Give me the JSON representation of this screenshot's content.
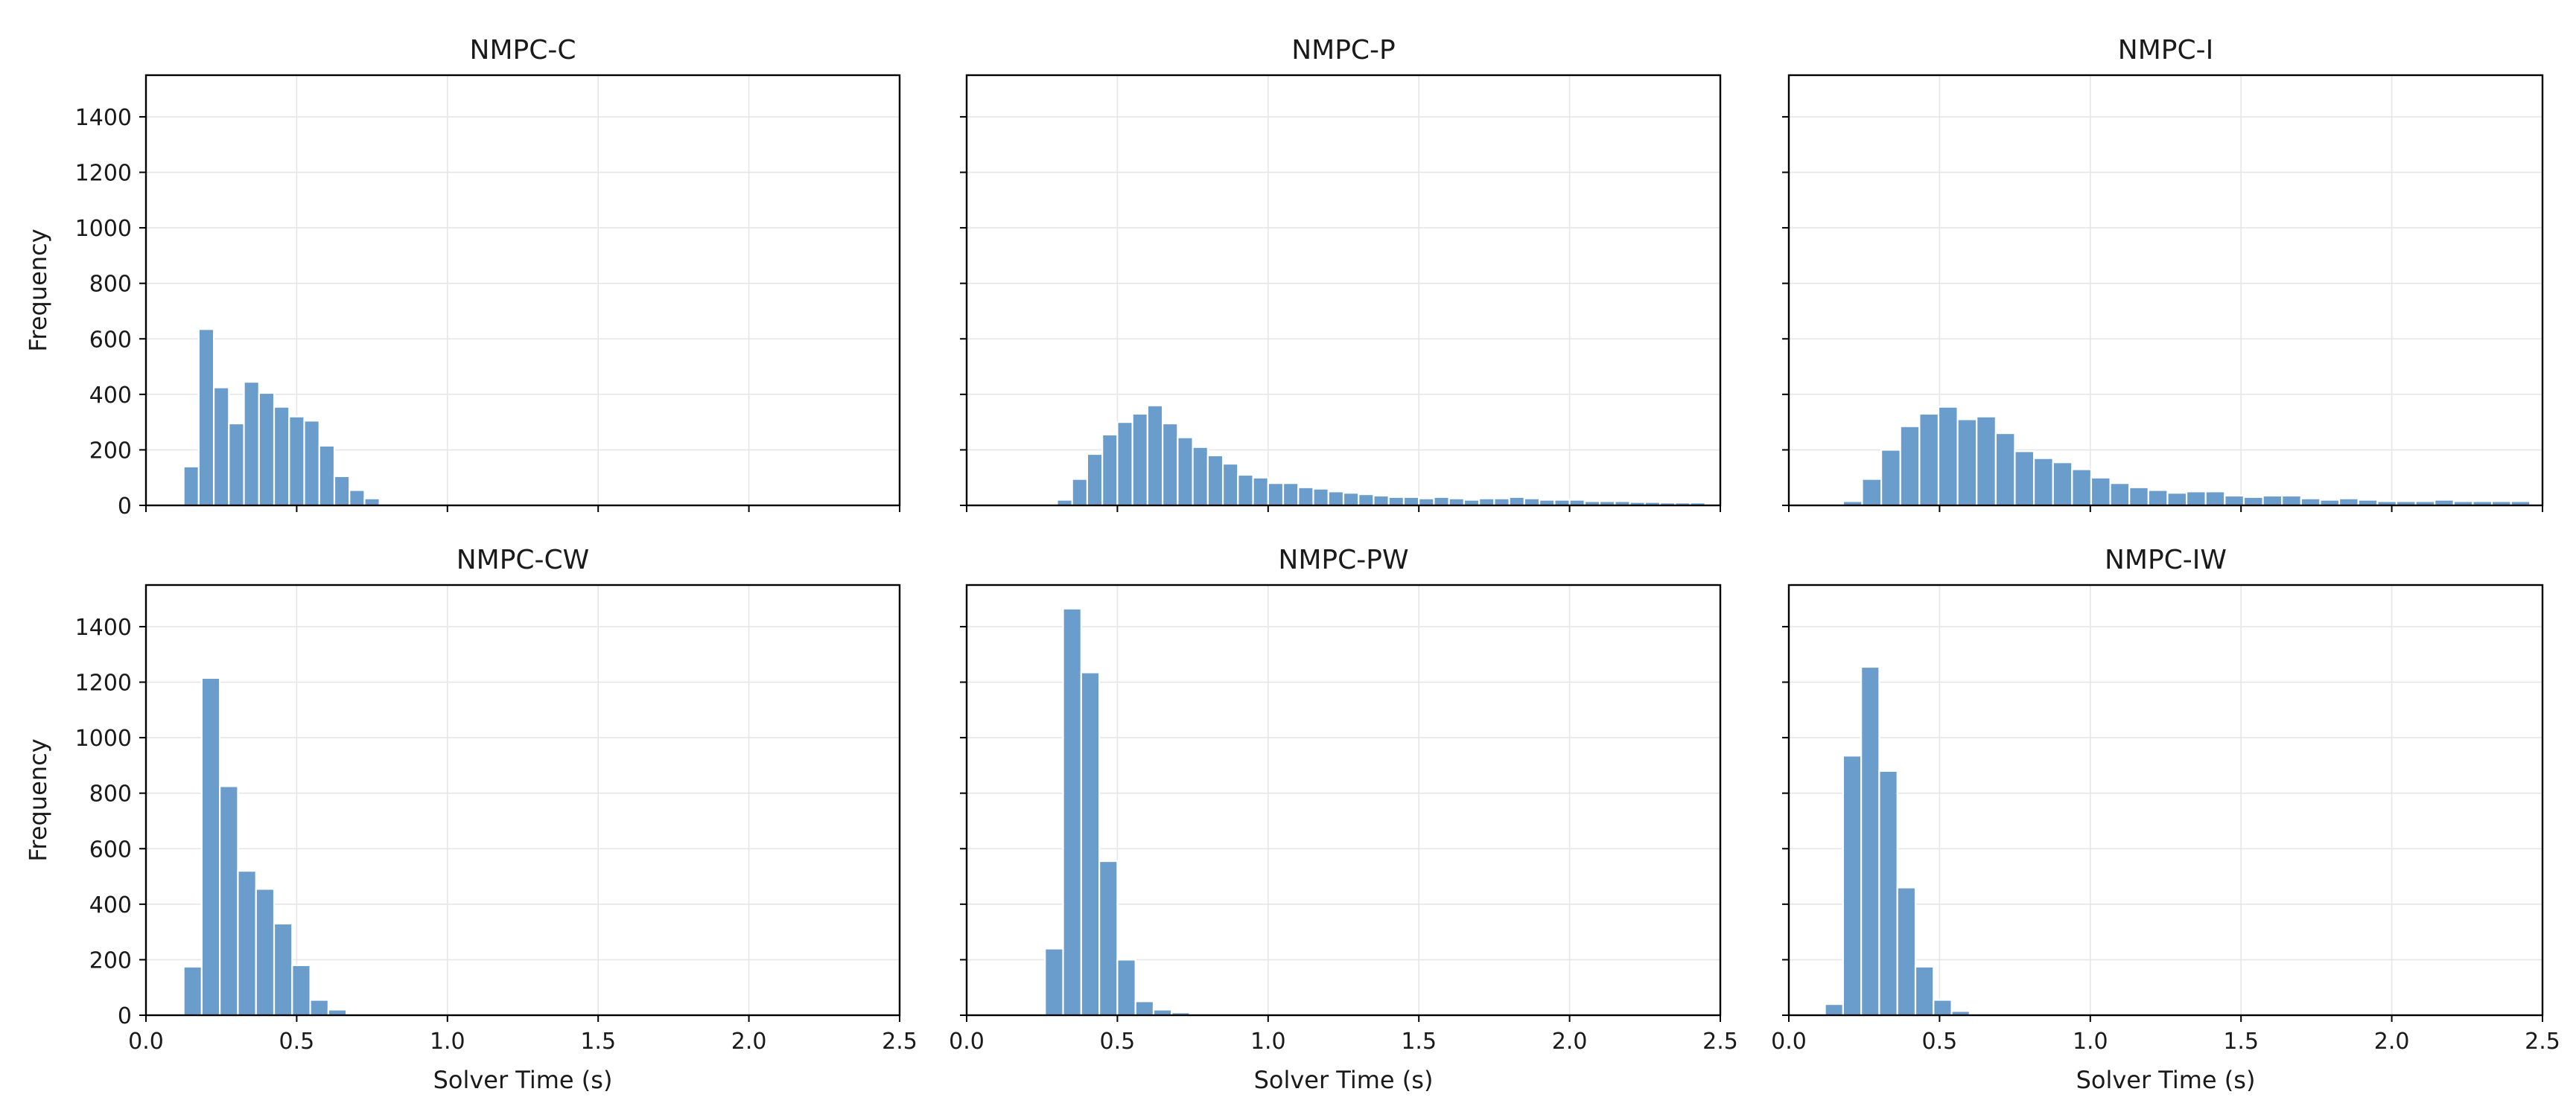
{
  "chart_data": [
    {
      "type": "bar",
      "title": "NMPC-C",
      "xlabel": "",
      "ylabel": "Frequency",
      "xlim": [
        0,
        2.5
      ],
      "ylim": [
        0,
        1550
      ],
      "grid": true,
      "bin_start": 0.125,
      "bin_width": 0.05,
      "values": [
        140,
        635,
        425,
        295,
        445,
        405,
        355,
        320,
        305,
        215,
        105,
        55,
        25,
        5
      ]
    },
    {
      "type": "bar",
      "title": "NMPC-P",
      "xlabel": "",
      "ylabel": "",
      "xlim": [
        0,
        2.5
      ],
      "ylim": [
        0,
        1550
      ],
      "grid": true,
      "bin_start": 0.3,
      "bin_width": 0.05,
      "values": [
        20,
        95,
        185,
        255,
        300,
        330,
        360,
        295,
        245,
        210,
        180,
        150,
        110,
        100,
        80,
        80,
        65,
        60,
        50,
        45,
        40,
        35,
        30,
        30,
        25,
        30,
        25,
        20,
        25,
        25,
        30,
        25,
        20,
        20,
        20,
        15,
        15,
        15,
        12,
        12,
        10,
        10,
        10
      ]
    },
    {
      "type": "bar",
      "title": "NMPC-I",
      "xlabel": "",
      "ylabel": "",
      "xlim": [
        0,
        2.5
      ],
      "ylim": [
        0,
        1550
      ],
      "grid": true,
      "bin_start": 0.18,
      "bin_width": 0.0633,
      "values": [
        15,
        95,
        200,
        285,
        330,
        355,
        310,
        320,
        260,
        195,
        170,
        155,
        130,
        100,
        80,
        65,
        55,
        45,
        50,
        50,
        35,
        30,
        35,
        35,
        25,
        20,
        25,
        20,
        15,
        15,
        15,
        20,
        15,
        15,
        15,
        15
      ]
    },
    {
      "type": "bar",
      "title": "NMPC-CW",
      "xlabel": "Solver Time (s)",
      "ylabel": "Frequency",
      "xlim": [
        0,
        2.5
      ],
      "ylim": [
        0,
        1550
      ],
      "grid": true,
      "bin_start": 0.125,
      "bin_width": 0.06,
      "values": [
        175,
        1215,
        825,
        520,
        455,
        330,
        180,
        55,
        20,
        5,
        3
      ]
    },
    {
      "type": "bar",
      "title": "NMPC-PW",
      "xlabel": "Solver Time (s)",
      "ylabel": "",
      "xlim": [
        0,
        2.5
      ],
      "ylim": [
        0,
        1550
      ],
      "grid": true,
      "bin_start": 0.14,
      "bin_width": 0.06,
      "values": [
        5,
        0,
        240,
        1465,
        1235,
        555,
        200,
        50,
        20,
        10,
        5
      ]
    },
    {
      "type": "bar",
      "title": "NMPC-IW",
      "xlabel": "Solver Time (s)",
      "ylabel": "",
      "xlim": [
        0,
        2.5
      ],
      "ylim": [
        0,
        1550
      ],
      "grid": true,
      "bin_start": 0.12,
      "bin_width": 0.06,
      "values": [
        40,
        935,
        1255,
        880,
        460,
        175,
        55,
        15,
        5
      ]
    }
  ],
  "y_ticks": [
    "0",
    "200",
    "400",
    "600",
    "800",
    "1000",
    "1200",
    "1400"
  ],
  "x_ticks": [
    "0.0",
    "0.5",
    "1.0",
    "1.5",
    "2.0",
    "2.5"
  ],
  "colors": {
    "bar": "#6a9ccc",
    "bar_edge": "#ffffff",
    "grid": "#e6e6e6"
  }
}
